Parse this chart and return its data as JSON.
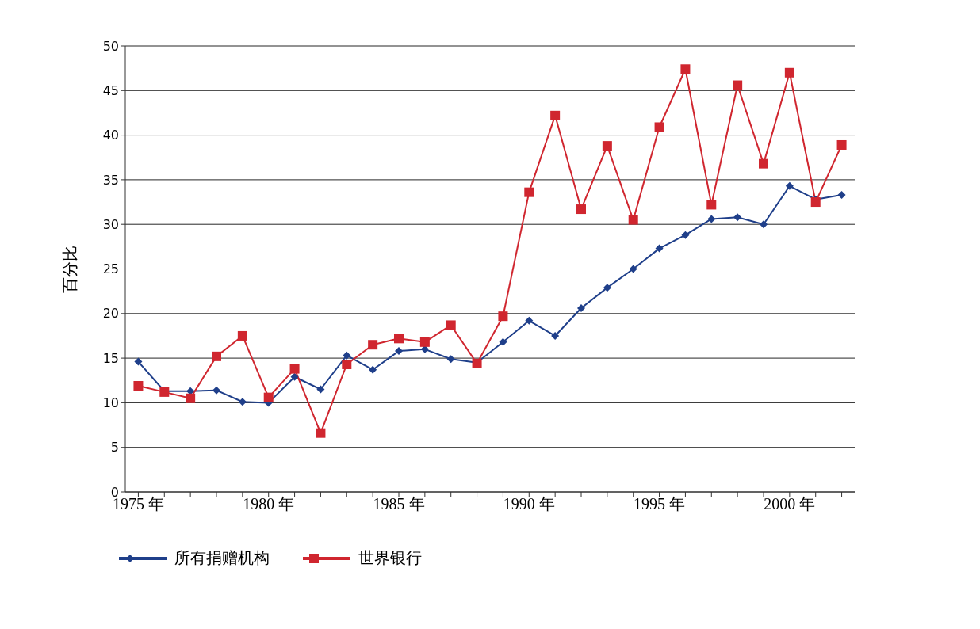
{
  "chart_data": {
    "type": "line",
    "ylabel": "百分比",
    "categories": [
      "1975 年",
      null,
      null,
      null,
      null,
      "1980 年",
      null,
      null,
      null,
      null,
      "1985 年",
      null,
      null,
      null,
      null,
      "1990 年",
      null,
      null,
      null,
      null,
      "1995 年",
      null,
      null,
      null,
      null,
      "2000 年",
      null,
      null
    ],
    "series": [
      {
        "name": "所有捐赠机构",
        "color": "#1f3f8a",
        "marker": "diamond",
        "values": [
          14.6,
          11.3,
          11.3,
          11.4,
          10.1,
          10.0,
          12.9,
          11.5,
          15.3,
          13.7,
          15.8,
          16.0,
          14.9,
          14.5,
          16.8,
          19.2,
          17.5,
          20.6,
          22.9,
          25.0,
          27.3,
          28.8,
          30.6,
          30.8,
          30.0,
          34.3,
          32.8,
          33.3
        ]
      },
      {
        "name": "世界银行",
        "color": "#d0262f",
        "marker": "square",
        "values": [
          11.9,
          11.2,
          10.5,
          15.2,
          17.5,
          10.6,
          13.8,
          6.6,
          14.3,
          16.5,
          17.2,
          16.8,
          18.7,
          14.4,
          19.7,
          33.6,
          42.2,
          31.7,
          38.8,
          30.5,
          40.9,
          47.4,
          32.2,
          45.6,
          36.8,
          47.0,
          32.5,
          38.9
        ]
      }
    ],
    "ylim": [
      0,
      50
    ],
    "yticks": [
      0,
      5,
      10,
      15,
      20,
      25,
      30,
      35,
      40,
      45,
      50
    ],
    "grid": "y",
    "legend": "bottom left"
  }
}
